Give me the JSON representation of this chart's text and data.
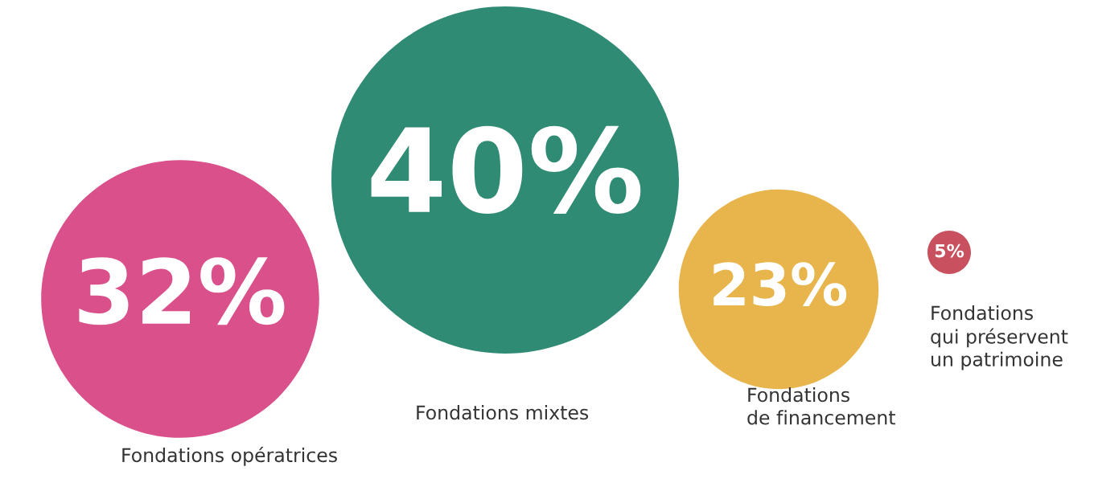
{
  "chart_data": {
    "type": "other",
    "categories": [
      "Fondations opératrices",
      "Fondations mixtes",
      "Fondations\nde financement",
      "Fondations\nqui préservent\nun patrimoine"
    ],
    "values": [
      32,
      40,
      23,
      5
    ],
    "value_labels": [
      "32%",
      "40%",
      "23%",
      "5%"
    ],
    "colors": [
      "#d9508a",
      "#2f8b73",
      "#e8b54c",
      "#c9505e"
    ]
  }
}
